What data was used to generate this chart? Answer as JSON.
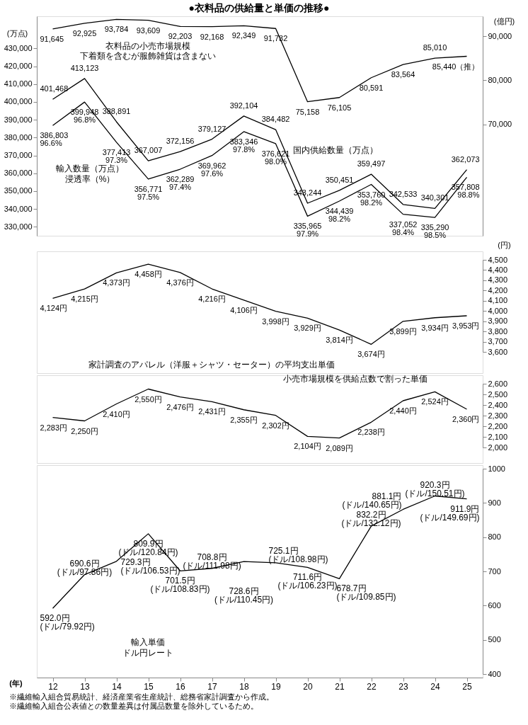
{
  "chart_data": [
    {
      "type": "line",
      "title": "●衣料品の供給量と単価の推移●",
      "ylabel": "(万点)",
      "y2label": "(億円)",
      "categories": [
        "12",
        "13",
        "14",
        "15",
        "16",
        "17",
        "18",
        "19",
        "20",
        "21",
        "22",
        "23",
        "24",
        "25"
      ],
      "ylim": [
        325000,
        448000
      ],
      "yticks": [
        {
          "value": 330000,
          "label": "330,000"
        },
        {
          "value": 340000,
          "label": "340,000"
        },
        {
          "value": 350000,
          "label": "350,000"
        },
        {
          "value": 360000,
          "label": "360,000"
        },
        {
          "value": 370000,
          "label": "370,000"
        },
        {
          "value": 380000,
          "label": "380,000"
        },
        {
          "value": 390000,
          "label": "390,000"
        },
        {
          "value": 400000,
          "label": "400,000"
        },
        {
          "value": 410000,
          "label": "410,000"
        },
        {
          "value": 420000,
          "label": "420,000"
        },
        {
          "value": 430000,
          "label": "430,000"
        }
      ],
      "y2lim": [
        44800,
        94500
      ],
      "y2ticks": [
        {
          "value": 70000,
          "label": "70,000"
        },
        {
          "value": 80000,
          "label": "80,000"
        },
        {
          "value": 90000,
          "label": "90,000"
        }
      ],
      "line_style": "solid",
      "tick_labels": "y",
      "series": [
        {
          "name": "衣料品の小売市場規模",
          "axis": "y2",
          "color": "#000000",
          "values": [
            91645,
            92925,
            93784,
            93609,
            92203,
            92168,
            92349,
            91732,
            75158,
            76105,
            80591,
            83564,
            85010,
            85440
          ],
          "value_labels": [
            "91,645",
            "92,925",
            "93,784",
            "93,609",
            "92,203",
            "92,168",
            "92,349",
            "91,732",
            "75,158",
            "76,105",
            "80,591",
            "83,564",
            "85,010",
            "85,440（推）"
          ]
        },
        {
          "name": "国内供給数量（万点）",
          "color": "#000000",
          "values": [
            401468,
            413123,
            388891,
            367007,
            372156,
            379127,
            392104,
            384482,
            343244,
            350451,
            359497,
            342533,
            340301,
            362073
          ],
          "value_labels": [
            "401,468",
            "413,123",
            "388,891",
            "367,007",
            "372,156",
            "379,127",
            "392,104",
            "384,482",
            "343,244",
            "350,451",
            "359,497",
            "342,533",
            "340,301",
            "362,073"
          ]
        },
        {
          "name": "輸入数量（万点）",
          "color": "#000000",
          "values": [
            386803,
            399948,
            377413,
            356771,
            362289,
            369962,
            383346,
            376621,
            335965,
            344439,
            353760,
            337052,
            335290,
            357808
          ],
          "value_labels": [
            "386,803\n96.6%",
            "399,948\n96.8%",
            "377,413\n97.3%",
            "356,771\n97.5%",
            "362,289\n97.4%",
            "369,962\n97.6%",
            "383,346\n97.8%",
            "376,621\n98.0%",
            "335,965\n97.9%",
            "344,439\n98.2%",
            "353,760\n98.2%",
            "337,052\n98.4%",
            "335,290\n98.5%",
            "357,808\n98.8%"
          ]
        }
      ],
      "annotations": [
        "下着類を含むが服飾雑貨は含まない",
        "浸透率（%）"
      ]
    },
    {
      "type": "line",
      "ylabel": "(円)",
      "categories": [
        "12",
        "13",
        "14",
        "15",
        "16",
        "17",
        "18",
        "19",
        "20",
        "21",
        "22",
        "23",
        "24",
        "25"
      ],
      "ylim": [
        3600,
        4500
      ],
      "yticks": [
        {
          "value": 3600,
          "label": "3,600"
        },
        {
          "value": 3700,
          "label": "3,700"
        },
        {
          "value": 3800,
          "label": "3,800"
        },
        {
          "value": 3900,
          "label": "3,900"
        },
        {
          "value": 4000,
          "label": "4,000"
        },
        {
          "value": 4100,
          "label": "4,100"
        },
        {
          "value": 4200,
          "label": "4,200"
        },
        {
          "value": 4300,
          "label": "4,300"
        },
        {
          "value": 4400,
          "label": "4,400"
        },
        {
          "value": 4500,
          "label": "4,500"
        }
      ],
      "line_style": "solid",
      "tick_labels": "y",
      "series": [
        {
          "name": "家計調査のアパレル（洋服＋シャツ・セーター）の平均支出単価",
          "color": "#000000",
          "values": [
            4124,
            4215,
            4373,
            4458,
            4376,
            4216,
            4106,
            3998,
            3929,
            3814,
            3674,
            3899,
            3934,
            3953
          ],
          "value_labels": [
            "4,124円",
            "4,215円",
            "4,373円",
            "4,458円",
            "4,376円",
            "4,216円",
            "4,106円",
            "3,998円",
            "3,929円",
            "3,814円",
            "3,674円",
            "3,899円",
            "3,934円",
            "3,953円"
          ]
        }
      ]
    },
    {
      "type": "line",
      "categories": [
        "12",
        "13",
        "14",
        "15",
        "16",
        "17",
        "18",
        "19",
        "20",
        "21",
        "22",
        "23",
        "24",
        "25"
      ],
      "ylim": [
        2000,
        2600
      ],
      "yticks": [
        {
          "value": 2000,
          "label": "2,000"
        },
        {
          "value": 2100,
          "label": "2,100"
        },
        {
          "value": 2200,
          "label": "2,200"
        },
        {
          "value": 2300,
          "label": "2,300"
        },
        {
          "value": 2400,
          "label": "2,400"
        },
        {
          "value": 2500,
          "label": "2,500"
        },
        {
          "value": 2600,
          "label": "2,600"
        }
      ],
      "line_style": "solid",
      "tick_labels": "y",
      "series": [
        {
          "name": "小売市場規模を供給点数で割った単価",
          "color": "#000000",
          "values": [
            2283,
            2250,
            2410,
            2550,
            2476,
            2431,
            2355,
            2302,
            2104,
            2089,
            2238,
            2440,
            2524,
            2360
          ],
          "value_labels": [
            "2,283円",
            "2,250円",
            "2,410円",
            "2,550円",
            "2,476円",
            "2,431円",
            "2,355円",
            "2,302円",
            "2,104円",
            "2,089円",
            "2,238円",
            "2,440円",
            "2,524円",
            "2,360円"
          ]
        }
      ]
    },
    {
      "type": "line",
      "xlabel": "(年)",
      "categories": [
        "12",
        "13",
        "14",
        "15",
        "16",
        "17",
        "18",
        "19",
        "20",
        "21",
        "22",
        "23",
        "24",
        "25"
      ],
      "ylim": [
        400,
        1000
      ],
      "yticks": [
        400,
        500,
        600,
        700,
        800,
        900,
        1000
      ],
      "line_style": "solid",
      "series": [
        {
          "name": "輸入単価",
          "color": "#000000",
          "values": [
            592.0,
            690.6,
            729.3,
            809.9,
            701.5,
            708.8,
            728.6,
            725.1,
            711.6,
            678.7,
            832.2,
            881.1,
            920.3,
            911.9
          ],
          "value_labels": [
            "592.0円\n(ドル/79.92円)",
            "690.6円\n(ドル/97.86円)",
            "729.3円\n(ドル/106.53円)",
            "809.9円\n(ドル/120.84円)",
            "701.5円\n(ドル/108.83円)",
            "708.8円\n(ドル/111.98円)",
            "728.6円\n(ドル/110.45円)",
            "725.1円\n(ドル/108.98円)",
            "711.6円\n(ドル/106.23円)",
            "678.7円\n(ドル/109.85円)",
            "832.2円\n(ドル/132.12円)",
            "881.1円\n(ドル/140.65円)",
            "920.3円\n(ドル/150.51円)",
            "911.9円\n(ドル/149.69円)"
          ]
        }
      ],
      "annotations": [
        "ドル円レート",
        "※繊維輸入組合貿易統計、経済産業省生産統計、総務省家計調査から作成。",
        "※繊維輸入組合公表値との数量差異は付属品数量を除外しているため。"
      ]
    }
  ]
}
